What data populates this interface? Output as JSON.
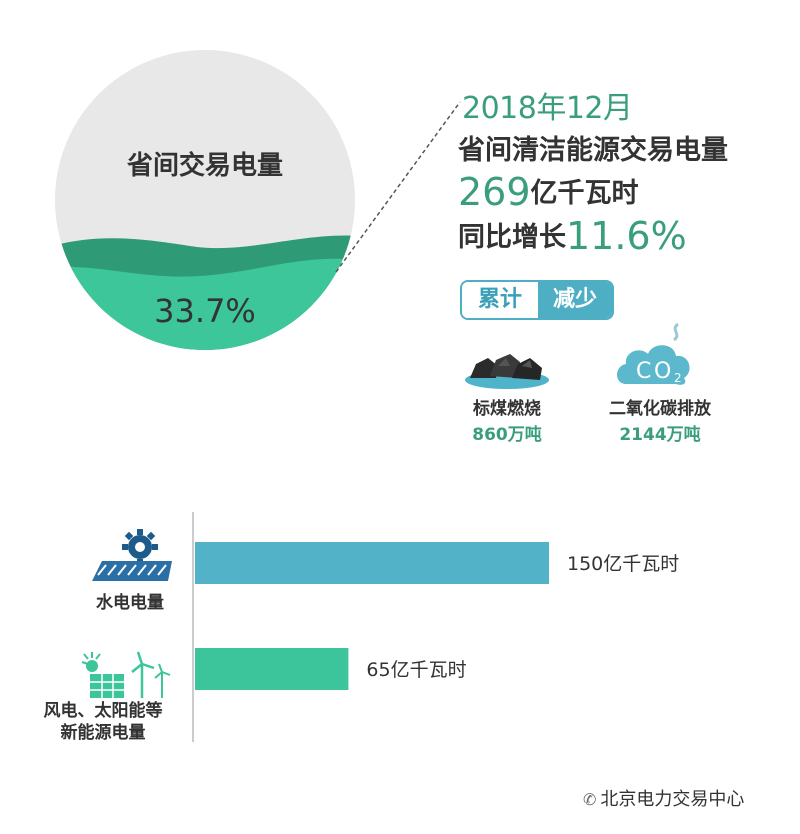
{
  "circle": {
    "title": "省间交易电量",
    "percent_label": "33.7%",
    "percent": 33.7,
    "colors": {
      "bg": "#e8e8e8",
      "wave_dark": "#2f9a76",
      "wave_light": "#3cc69a"
    }
  },
  "headline": {
    "date": "2018年12月",
    "line1": "省间清洁能源交易电量",
    "amount_num": "269",
    "amount_unit": "亿千瓦时",
    "growth_prefix": "同比增长",
    "growth_num": "11.6%"
  },
  "badge": {
    "left": "累计",
    "right": "减少"
  },
  "reductions": [
    {
      "icon": "coal-icon",
      "label": "标煤燃烧",
      "value": "860万吨"
    },
    {
      "icon": "co2-cloud-icon",
      "label": "二氧化碳排放",
      "value": "2144万吨"
    }
  ],
  "chart_data": {
    "type": "bar",
    "orientation": "horizontal",
    "categories": [
      "水电电量",
      "风电、太阳能等\n新能源电量"
    ],
    "values": [
      150,
      65
    ],
    "value_labels": [
      "150亿千瓦时",
      "65亿千瓦时"
    ],
    "unit": "亿千瓦时",
    "colors": [
      "#52b2c7",
      "#3cc49a"
    ],
    "xlim": [
      0,
      150
    ]
  },
  "footer": {
    "text": "北京电力交易中心"
  }
}
